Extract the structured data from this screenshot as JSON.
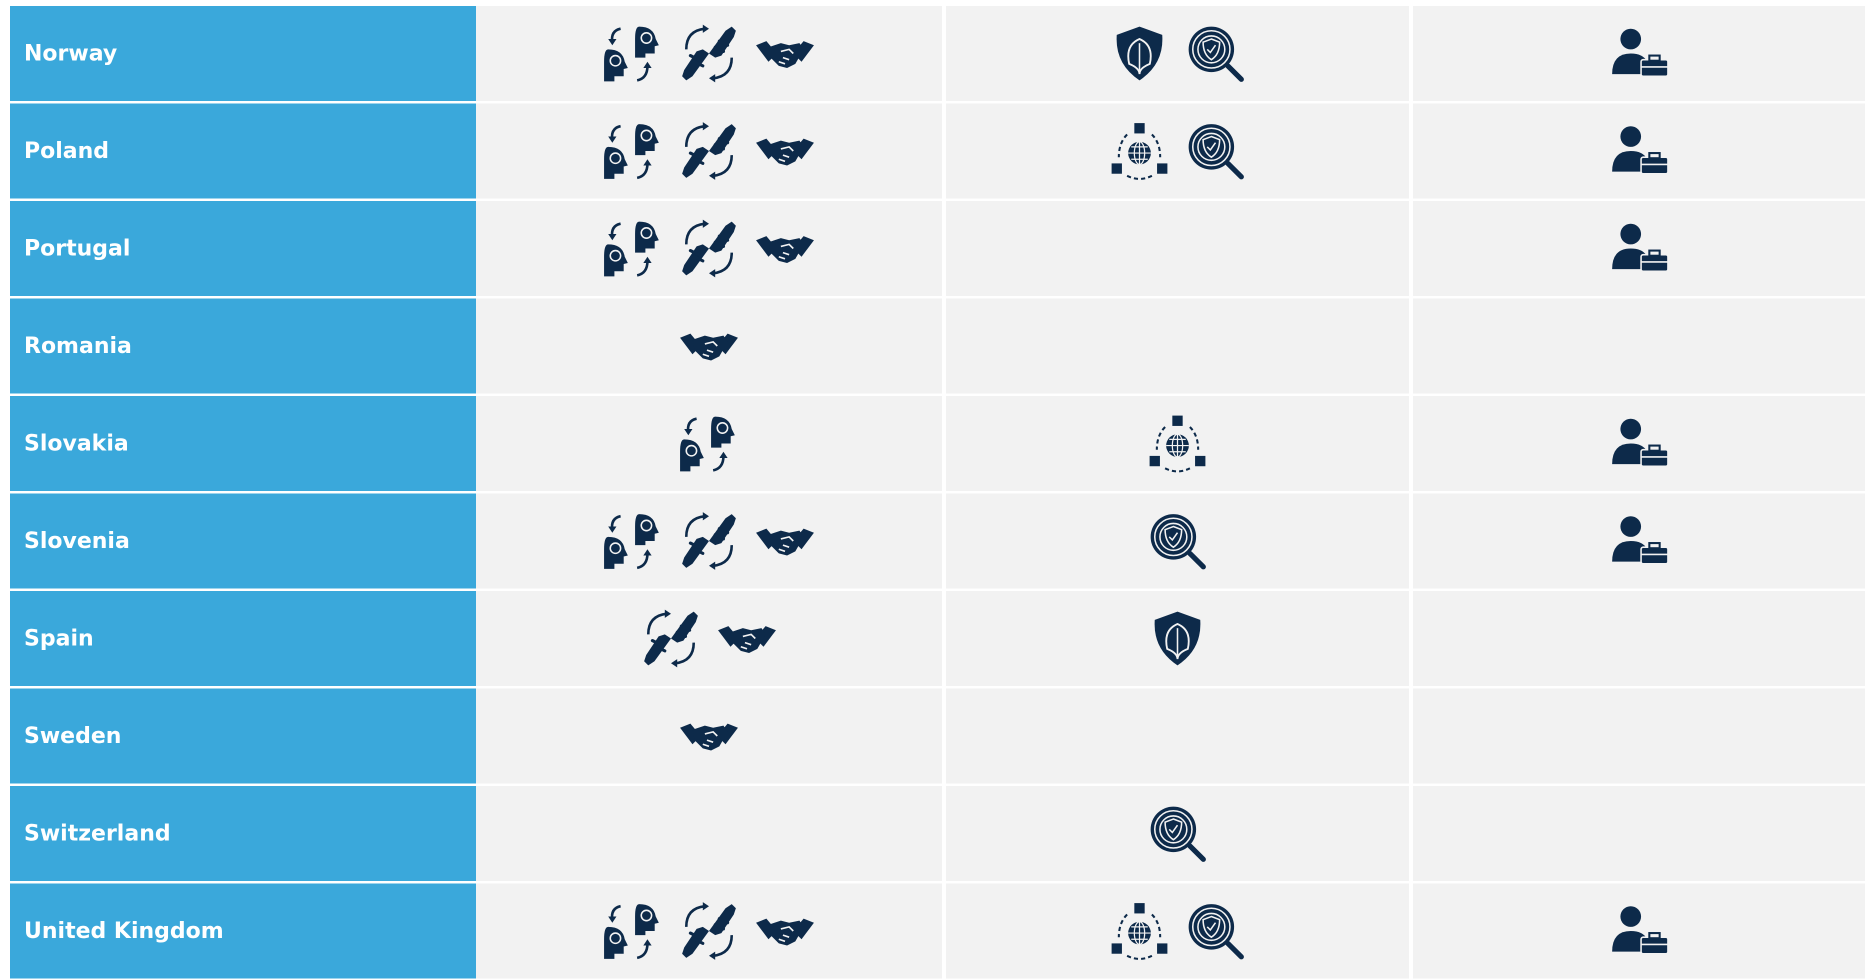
{
  "table": {
    "rows": [
      "Norway",
      "Poland",
      "Portugal",
      "Romania",
      "Slovakia",
      "Slovenia",
      "Spain",
      "Sweden",
      "Switzerland",
      "United Kingdom"
    ]
  }
}
